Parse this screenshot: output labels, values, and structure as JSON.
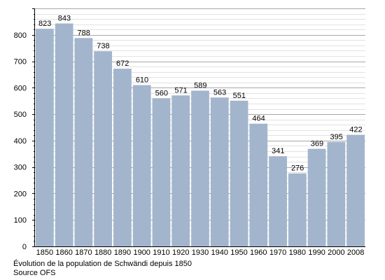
{
  "chart_data": {
    "type": "bar",
    "categories": [
      "1850",
      "1860",
      "1870",
      "1880",
      "1890",
      "1900",
      "1910",
      "1920",
      "1930",
      "1940",
      "1950",
      "1960",
      "1970",
      "1980",
      "1990",
      "2000",
      "2008"
    ],
    "values": [
      823,
      843,
      788,
      738,
      672,
      610,
      560,
      571,
      589,
      563,
      551,
      464,
      341,
      276,
      369,
      395,
      422
    ],
    "title": "",
    "xlabel": "",
    "ylabel": "",
    "ylim": [
      0,
      900
    ],
    "yticks": [
      0,
      100,
      200,
      300,
      400,
      500,
      600,
      700,
      800
    ],
    "grid": true,
    "bar_color": "#a2b5cd",
    "grid_color": "#c8c8c8",
    "data_labels": true
  },
  "caption": {
    "line1": "Évolution de la population de Schwändi depuis 1850",
    "line2": "Source OFS"
  }
}
